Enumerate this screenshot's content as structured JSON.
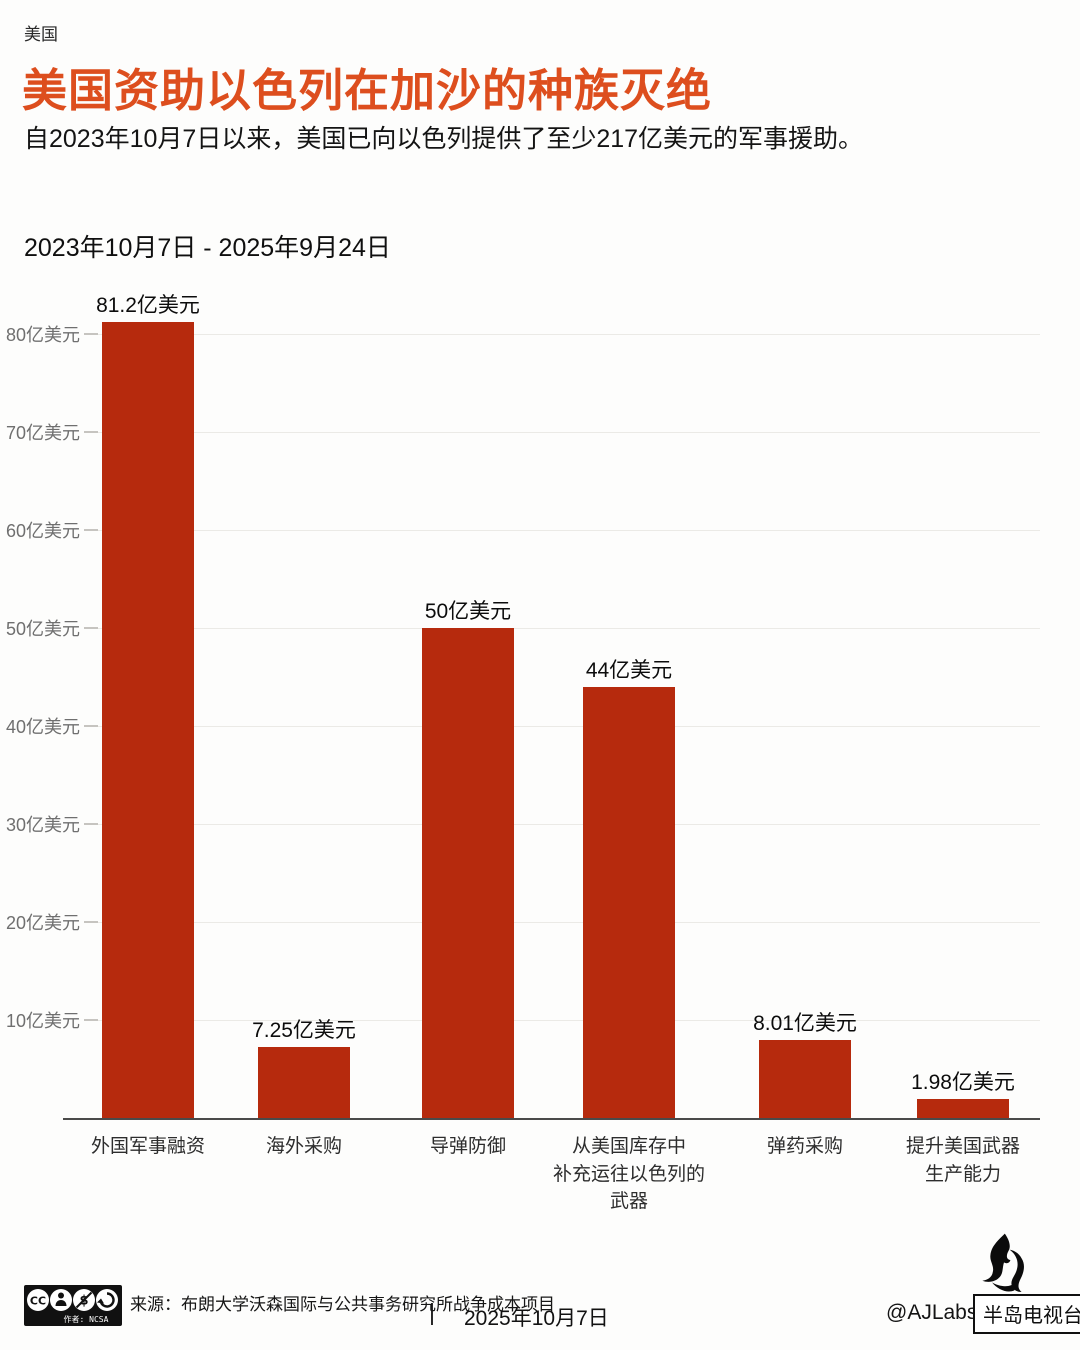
{
  "header": {
    "kicker": "美国",
    "title": "美国资助以色列在加沙的种族灭绝",
    "subtitle": "自2023年10月7日以来，美国已向以色列提供了至少217亿美元的军事援助。",
    "period": "2023年10月7日 - 2025年9月24日"
  },
  "chart_data": {
    "type": "bar",
    "title": "美国资助以色列在加沙的种族灭绝",
    "subtitle": "自2023年10月7日以来，美国已向以色列提供了至少217亿美元的军事援助。",
    "period": "2023年10月7日 - 2025年9月24日",
    "categories": [
      "外国军事融资",
      "海外采购",
      "导弹防御",
      "从美国库存中补充运往以色列的武器",
      "弹药采购",
      "提升美国武器生产能力"
    ],
    "category_lines": [
      [
        "外国军事融资"
      ],
      [
        "海外采购"
      ],
      [
        "导弹防御"
      ],
      [
        "从美国库存中",
        "补充运往以色列的",
        "武器"
      ],
      [
        "弹药采购"
      ],
      [
        "提升美国武器",
        "生产能力"
      ]
    ],
    "values": [
      81.2,
      7.25,
      50,
      44,
      8.01,
      1.98
    ],
    "value_labels": [
      "81.2亿美元",
      "7.25亿美元",
      "50亿美元",
      "44亿美元",
      "8.01亿美元",
      "1.98亿美元"
    ],
    "unit": "亿美元",
    "y_ticks": [
      10,
      20,
      30,
      40,
      50,
      60,
      70,
      80
    ],
    "y_tick_labels": [
      "10亿美元",
      "20亿美元",
      "30亿美元",
      "40亿美元",
      "50亿美元",
      "60亿美元",
      "70亿美元",
      "80亿美元"
    ],
    "ylim": [
      0,
      85
    ],
    "grid": true,
    "legend": "none",
    "bar_color": "#b62a0d"
  },
  "footer": {
    "license_caption": "作者: NCSA",
    "license_icons": [
      "cc-icon",
      "by-person-icon",
      "nc-dollar-icon",
      "sa-arrow-icon"
    ],
    "source": "来源：布朗大学沃森国际与公共事务研究所战争成本项目",
    "separator": "|",
    "date": "2025年10月7日",
    "credit": "@AJLabs",
    "brand": "半岛电视台"
  },
  "colors": {
    "accent": "#dd4e1e",
    "bar": "#b62a0d",
    "gridline": "#ebeae6",
    "axis": "#4a4a4a",
    "tick_text": "#6f6f6f"
  }
}
